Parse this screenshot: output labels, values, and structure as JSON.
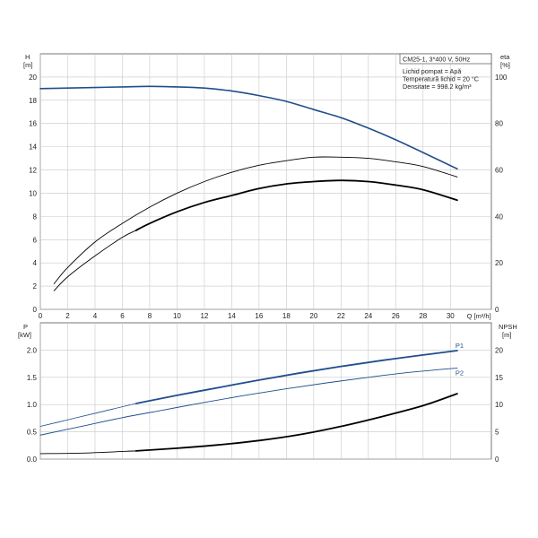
{
  "chart_data": [
    {
      "type": "line",
      "panel": "top",
      "left_axis": {
        "label_line1": "H",
        "label_line2": "[m]",
        "range": [
          0,
          22
        ],
        "ticks": [
          0,
          2,
          4,
          6,
          8,
          10,
          12,
          14,
          16,
          18,
          20
        ]
      },
      "right_axis": {
        "label_line1": "eta",
        "label_line2": "[%]",
        "range": [
          0,
          110
        ],
        "ticks": [
          0,
          20,
          40,
          60,
          80,
          100
        ]
      },
      "x_axis": {
        "label": "Q [m³/h]",
        "range": [
          0,
          33
        ],
        "ticks": [
          0,
          2,
          4,
          6,
          8,
          10,
          12,
          14,
          16,
          18,
          20,
          22,
          24,
          26,
          28,
          30
        ]
      },
      "grid": true,
      "info_box": {
        "title": "CM25-1, 3*400 V, 50Hz",
        "lines": [
          "Lichid pompat = Apă",
          "Temperatură lichid = 20 °C",
          "Densitate = 998.2 kg/m³"
        ]
      },
      "series": [
        {
          "axis": "left",
          "color": "#1f4e8c",
          "width": 1.6,
          "x": [
            0,
            2,
            4,
            6,
            8,
            10,
            12,
            14,
            16,
            18,
            20,
            22,
            24,
            26,
            28,
            30.5
          ],
          "y": [
            19.0,
            19.05,
            19.1,
            19.15,
            19.2,
            19.15,
            19.05,
            18.8,
            18.4,
            17.9,
            17.2,
            16.5,
            15.6,
            14.6,
            13.5,
            12.1
          ]
        },
        {
          "axis": "right",
          "color": "#000000",
          "width": 0.9,
          "x": [
            1,
            2,
            4,
            6,
            8,
            10,
            12,
            14,
            16,
            18,
            20,
            22,
            24,
            26,
            28,
            30.5
          ],
          "y": [
            11,
            18,
            29,
            37,
            44,
            50,
            55,
            59,
            62,
            64,
            65.5,
            65.5,
            65,
            63.5,
            61.5,
            57
          ]
        },
        {
          "axis": "right",
          "color": "#000000",
          "width": 0.9,
          "x": [
            1,
            2,
            4,
            6,
            7
          ],
          "y": [
            8,
            14,
            23,
            31,
            34
          ]
        },
        {
          "axis": "right",
          "color": "#000000",
          "width": 1.8,
          "x": [
            7,
            8,
            10,
            12,
            14,
            16,
            18,
            20,
            22,
            24,
            26,
            28,
            30.5
          ],
          "y": [
            34,
            37,
            42,
            46,
            49,
            52,
            54,
            55,
            55.5,
            55,
            53.5,
            51.5,
            47
          ]
        }
      ]
    },
    {
      "type": "line",
      "panel": "bottom",
      "left_axis": {
        "label_line1": "P",
        "label_line2": "[kW]",
        "range": [
          0,
          2.5
        ],
        "ticks": [
          "0.0",
          "0.5",
          "1.0",
          "1.5",
          "2.0"
        ]
      },
      "right_axis": {
        "label_line1": "NPSH",
        "label_line2": "[m]",
        "range": [
          0,
          25
        ],
        "ticks": [
          0,
          5,
          10,
          15,
          20
        ]
      },
      "grid": true,
      "series": [
        {
          "name": "P1",
          "axis": "left",
          "color": "#1f4e8c",
          "width": 0.8,
          "x": [
            0,
            2,
            4,
            7
          ],
          "y": [
            0.6,
            0.72,
            0.84,
            1.02
          ]
        },
        {
          "axis": "left",
          "color": "#1f4e8c",
          "width": 1.8,
          "x": [
            7,
            10,
            13,
            16,
            19,
            22,
            25,
            28,
            30.5
          ],
          "y": [
            1.02,
            1.17,
            1.31,
            1.45,
            1.58,
            1.7,
            1.81,
            1.91,
            1.99
          ]
        },
        {
          "name": "P2",
          "axis": "left",
          "color": "#1f4e8c",
          "width": 0.9,
          "x": [
            0,
            3,
            6,
            9,
            12,
            15,
            18,
            21,
            24,
            27,
            30.5
          ],
          "y": [
            0.44,
            0.6,
            0.76,
            0.9,
            1.04,
            1.17,
            1.29,
            1.4,
            1.5,
            1.59,
            1.67
          ]
        },
        {
          "axis": "right",
          "color": "#000000",
          "width": 0.9,
          "x": [
            0,
            3,
            7
          ],
          "y": [
            1.0,
            1.1,
            1.5
          ]
        },
        {
          "axis": "right",
          "color": "#000000",
          "width": 1.8,
          "x": [
            7,
            10,
            13,
            16,
            19,
            22,
            25,
            28,
            30.5
          ],
          "y": [
            1.5,
            2.0,
            2.6,
            3.4,
            4.5,
            6.0,
            7.8,
            9.8,
            12.0
          ]
        }
      ],
      "labels": [
        {
          "text": "P1",
          "series": "P1",
          "color": "#1f4e8c"
        },
        {
          "text": "P2",
          "series": "P2",
          "color": "#1f4e8c"
        }
      ]
    }
  ]
}
